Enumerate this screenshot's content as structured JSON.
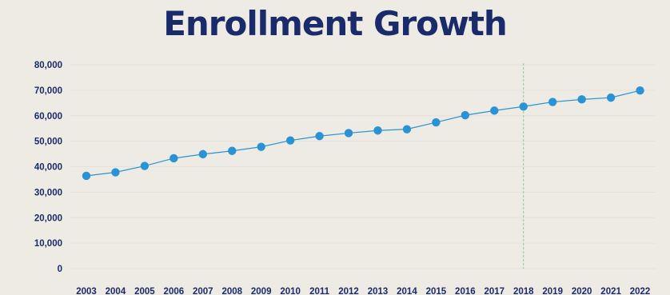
{
  "colors": {
    "background": "#eeebe4",
    "title": "#1a2b6b",
    "line": "#2a93d5",
    "marker": "#2a93d5",
    "gridline": "#e6e2d8",
    "reference_line": "#8fd08f"
  },
  "chart_data": {
    "type": "line",
    "title": "Enrollment Growth",
    "xlabel": "",
    "ylabel": "",
    "categories": [
      "2003",
      "2004",
      "2005",
      "2006",
      "2007",
      "2008",
      "2009",
      "2010",
      "2011",
      "2012",
      "2013",
      "2014",
      "2015",
      "2016",
      "2017",
      "2018",
      "2019",
      "2020",
      "2021",
      "2022"
    ],
    "series": [
      {
        "values": [
          36400,
          37800,
          40300,
          43300,
          44900,
          46200,
          47800,
          50300,
          52000,
          53200,
          54200,
          54700,
          57400,
          60200,
          62000,
          63600,
          65400,
          66400,
          67100,
          69900
        ]
      }
    ],
    "ylim": [
      0,
      80000
    ],
    "yticks": [
      0,
      10000,
      20000,
      30000,
      40000,
      50000,
      60000,
      70000,
      80000
    ],
    "ytick_labels": [
      "0",
      "10,000",
      "20,000",
      "30,000",
      "40,000",
      "50,000",
      "60,000",
      "70,000",
      "80,000"
    ],
    "grid": true,
    "legend": "none",
    "reference_line": {
      "x": "2018",
      "style": "dashed"
    }
  }
}
